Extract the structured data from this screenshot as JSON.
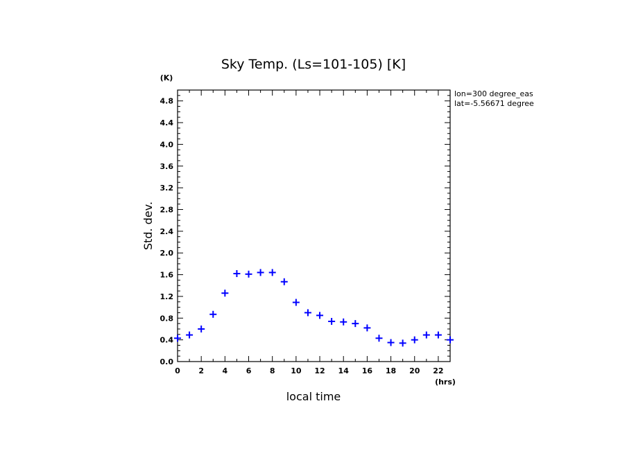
{
  "chart_data": {
    "type": "scatter",
    "title": "Sky Temp. (Ls=101-105) [K]",
    "xlabel": "local time",
    "ylabel": "Std. dev.",
    "x_unit": "(hrs)",
    "y_unit": "(K)",
    "xlim": [
      0,
      23
    ],
    "ylim": [
      0,
      5.0
    ],
    "x_ticks": [
      0,
      2,
      4,
      6,
      8,
      10,
      12,
      14,
      16,
      18,
      20,
      22
    ],
    "y_ticks": [
      0.0,
      0.4,
      0.8,
      1.2,
      1.6,
      2.0,
      2.4,
      2.8,
      3.2,
      3.6,
      4.0,
      4.4,
      4.8
    ],
    "y_tick_labels": [
      "0.0",
      "0.4",
      "0.8",
      "1.2",
      "1.6",
      "2.0",
      "2.4",
      "2.8",
      "3.2",
      "3.6",
      "4.0",
      "4.4",
      "4.8"
    ],
    "grid": false,
    "marker": "plus",
    "marker_color": "#0000ff",
    "annotations": [
      "lon=300 degree_eas",
      "lat=-5.56671 degree"
    ],
    "x": [
      0,
      1,
      2,
      3,
      4,
      5,
      6,
      7,
      8,
      9,
      10,
      11,
      12,
      13,
      14,
      15,
      16,
      17,
      18,
      19,
      20,
      21,
      22,
      23
    ],
    "values": [
      0.43,
      0.49,
      0.6,
      0.87,
      1.26,
      1.62,
      1.61,
      1.64,
      1.64,
      1.47,
      1.09,
      0.9,
      0.85,
      0.74,
      0.73,
      0.7,
      0.62,
      0.43,
      0.35,
      0.34,
      0.4,
      0.49,
      0.49,
      0.4
    ]
  }
}
